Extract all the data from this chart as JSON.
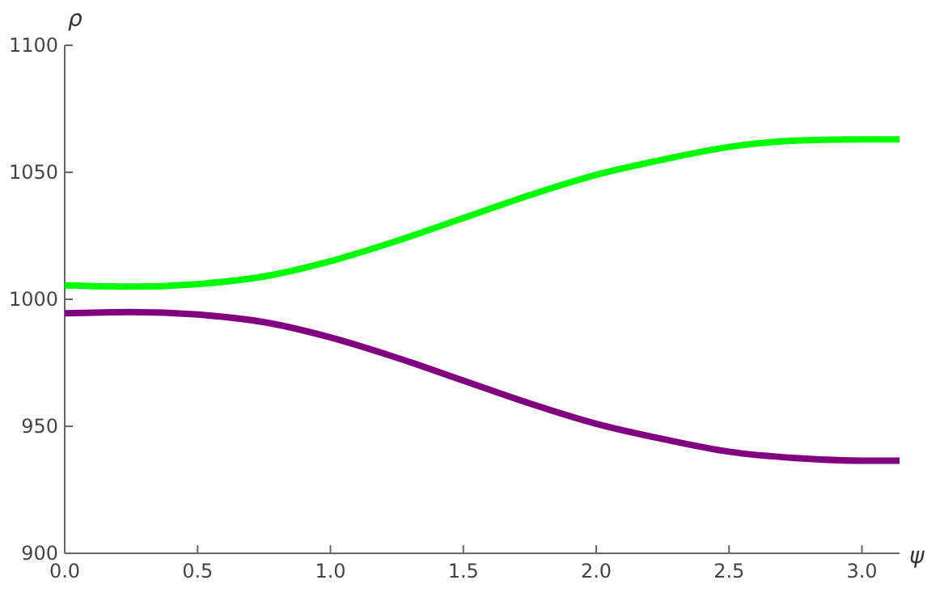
{
  "chart_data": {
    "type": "line",
    "xlabel": "ψ",
    "ylabel": "ρ",
    "xlim": [
      0,
      3.1416
    ],
    "ylim": [
      900,
      1100
    ],
    "xticks": [
      {
        "value": 0,
        "label": "0.0"
      },
      0.5,
      {
        "value": 1,
        "label": "1.0"
      },
      1.5,
      {
        "value": 2,
        "label": "2.0"
      },
      2.5,
      {
        "value": 3,
        "label": "3.0"
      }
    ],
    "yticks": [
      900,
      950,
      1000,
      1050,
      1100
    ],
    "grid": false,
    "marker": "none",
    "line_style": "solid",
    "series": [
      {
        "color": "#00ff00",
        "x": [
          0,
          0.25,
          0.5,
          0.75,
          1.0,
          1.25,
          1.5,
          1.75,
          2.0,
          2.25,
          2.5,
          2.75,
          3.0,
          3.1416
        ],
        "values": [
          1005.5,
          1005,
          1006,
          1009,
          1015,
          1023,
          1032,
          1041,
          1049,
          1055,
          1060,
          1062.5,
          1063,
          1063
        ]
      },
      {
        "color": "#800080",
        "x": [
          0,
          0.25,
          0.5,
          0.75,
          1.0,
          1.25,
          1.5,
          1.75,
          2.0,
          2.25,
          2.5,
          2.75,
          3.0,
          3.1416
        ],
        "values": [
          994.5,
          995,
          994,
          991,
          985,
          977,
          968,
          959,
          951,
          945,
          940,
          937.5,
          936.5,
          936.5
        ]
      }
    ]
  }
}
